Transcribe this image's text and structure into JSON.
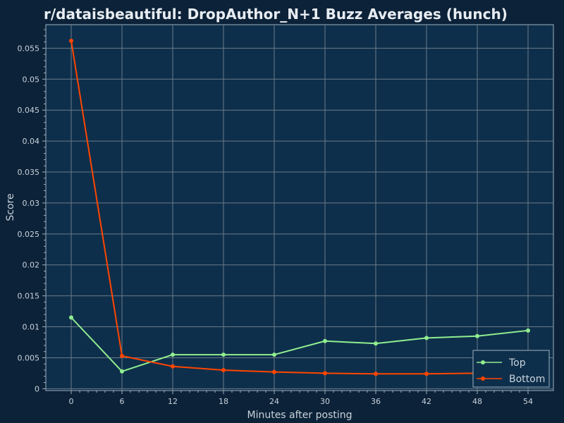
{
  "chart_data": {
    "type": "line",
    "title": "r/dataisbeautiful: DropAuthor_N+1 Buzz Averages (hunch)",
    "xlabel": "Minutes after posting",
    "ylabel": "Score",
    "x": [
      0,
      6,
      12,
      18,
      24,
      30,
      36,
      42,
      48,
      54
    ],
    "x_ticks": [
      "0",
      "6",
      "12",
      "18",
      "24",
      "30",
      "36",
      "42",
      "48",
      "54"
    ],
    "xlim": [
      -3,
      57
    ],
    "y_ticks": [
      "0",
      "0.005",
      "0.01",
      "0.015",
      "0.02",
      "0.025",
      "0.03",
      "0.035",
      "0.04",
      "0.045",
      "0.05",
      "0.055"
    ],
    "ylim": [
      -0.0003,
      0.0588
    ],
    "grid": true,
    "legend_position": "bottom-right",
    "series": [
      {
        "name": "Top",
        "color": "#90ee90",
        "values": [
          0.0115,
          0.0028,
          0.0055,
          0.0055,
          0.0055,
          0.0077,
          0.0073,
          0.0082,
          0.0085,
          0.0094
        ]
      },
      {
        "name": "Bottom",
        "color": "#ff4500",
        "values": [
          0.0562,
          0.0053,
          0.0036,
          0.003,
          0.0027,
          0.0025,
          0.0024,
          0.0024,
          0.0025,
          null
        ]
      }
    ]
  }
}
